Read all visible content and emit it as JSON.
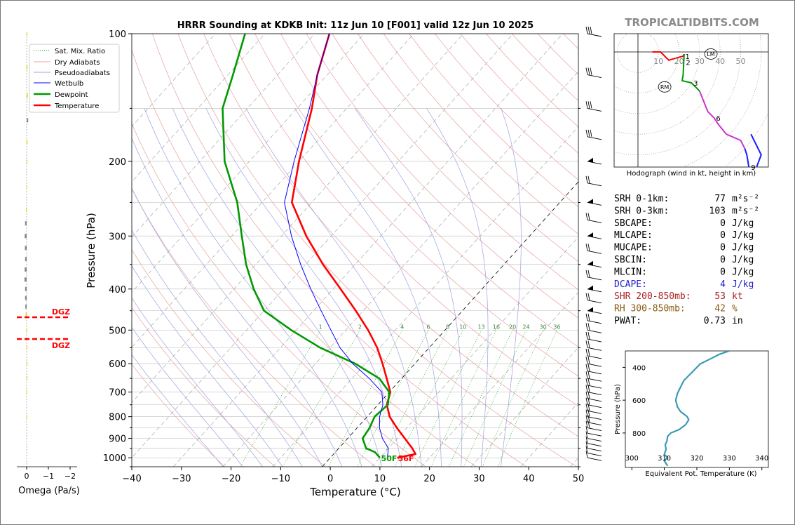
{
  "brand": "TROPICALTIDBITS.COM",
  "skewt": {
    "title": "HRRR Sounding at KDKB Init: 11z Jun 10 [F001] valid 12z Jun 10 2025",
    "xlabel": "Temperature (°C)",
    "ylabel": "Pressure (hPa)",
    "x_ticks": [
      "−40",
      "−30",
      "−20",
      "−10",
      "0",
      "10",
      "20",
      "30",
      "40",
      "50"
    ],
    "y_ticks": [
      "100",
      "200",
      "300",
      "400",
      "500",
      "600",
      "700",
      "800",
      "900",
      "1000"
    ],
    "legend": [
      "Sat. Mix. Ratio",
      "Dry Adiabats",
      "Pseudoadiabats",
      "Wetbulb",
      "Dewpoint",
      "Temperature"
    ],
    "mixing_ratio_labels": [
      "1",
      "2",
      "4",
      "6",
      "8",
      "10",
      "13",
      "16",
      "20",
      "24",
      "30",
      "36"
    ],
    "sfc_dewpoint_label": "50F",
    "sfc_temperature_label": "56F"
  },
  "omega": {
    "xlabel": "Omega (Pa/s)",
    "x_ticks": [
      "0",
      "−1",
      "−2"
    ],
    "dgz_label": "DGZ"
  },
  "hodograph": {
    "caption": "Hodograph (wind in kt, height in km)",
    "ring_labels": [
      "10",
      "20",
      "30",
      "40",
      "50"
    ],
    "height_labels": [
      "1",
      "2",
      "3",
      "6",
      "9"
    ],
    "markers": [
      "LM",
      "RM"
    ]
  },
  "params": [
    {
      "label": "SRH 0-1km:",
      "value": "77",
      "unit": "m²s⁻²",
      "color": "#000000"
    },
    {
      "label": "SRH 0-3km:",
      "value": "103",
      "unit": "m²s⁻²",
      "color": "#000000"
    },
    {
      "label": "SBCAPE:",
      "value": "0",
      "unit": "J/kg",
      "color": "#000000"
    },
    {
      "label": "MLCAPE:",
      "value": "0",
      "unit": "J/kg",
      "color": "#000000"
    },
    {
      "label": "MUCAPE:",
      "value": "0",
      "unit": "J/kg",
      "color": "#000000"
    },
    {
      "label": "SBCIN:",
      "value": "0",
      "unit": "J/kg",
      "color": "#000000"
    },
    {
      "label": "MLCIN:",
      "value": "0",
      "unit": "J/kg",
      "color": "#000000"
    },
    {
      "label": "DCAPE:",
      "value": "4",
      "unit": "J/kg",
      "color": "#2222cc"
    },
    {
      "label": "SHR 200-850mb:",
      "value": "53",
      "unit": "kt",
      "color": "#aa2222"
    },
    {
      "label": "RH 300-850mb:",
      "value": "42",
      "unit": "%",
      "color": "#8a5a10"
    },
    {
      "label": "PWAT:",
      "value": "0.73",
      "unit": "in",
      "color": "#000000"
    }
  ],
  "theta_e_panel": {
    "xlabel": "Equivalent Pot. Temperature (K)",
    "ylabel": "Pressure (hPa)",
    "x_ticks": [
      "300",
      "310",
      "320",
      "330",
      "340"
    ],
    "y_ticks": [
      "400",
      "600",
      "800"
    ]
  },
  "chart_data": [
    {
      "type": "line",
      "title": "HRRR Sounding at KDKB Init: 11z Jun 10 [F001] valid 12z Jun 10 2025",
      "xlabel": "Temperature (°C)",
      "ylabel": "Pressure (hPa)",
      "xlim": [
        -40,
        50
      ],
      "ylim": [
        1050,
        100
      ],
      "y_scale": "log",
      "skew": "skew-T",
      "legend_position": "top-left",
      "series": [
        {
          "name": "Temperature",
          "color": "#ff0000",
          "points": [
            [
              1000,
              13.5
            ],
            [
              980,
              16.5
            ],
            [
              950,
              14.8
            ],
            [
              900,
              11.5
            ],
            [
              850,
              8.0
            ],
            [
              800,
              4.5
            ],
            [
              750,
              1.8
            ],
            [
              700,
              0.2
            ],
            [
              650,
              -3.0
            ],
            [
              600,
              -6.5
            ],
            [
              550,
              -10.5
            ],
            [
              500,
              -15.5
            ],
            [
              450,
              -21.5
            ],
            [
              400,
              -28.5
            ],
            [
              350,
              -36.5
            ],
            [
              300,
              -45
            ],
            [
              250,
              -54
            ],
            [
              200,
              -60
            ],
            [
              150,
              -67
            ],
            [
              125,
              -72
            ],
            [
              100,
              -77
            ]
          ]
        },
        {
          "name": "Dewpoint",
          "color": "#009900",
          "points": [
            [
              1000,
              10.0
            ],
            [
              970,
              8.0
            ],
            [
              950,
              5.5
            ],
            [
              900,
              3.0
            ],
            [
              850,
              2.5
            ],
            [
              800,
              1.5
            ],
            [
              750,
              2.0
            ],
            [
              700,
              0.0
            ],
            [
              650,
              -4.5
            ],
            [
              600,
              -12
            ],
            [
              550,
              -22
            ],
            [
              500,
              -31
            ],
            [
              450,
              -40
            ],
            [
              400,
              -46
            ],
            [
              350,
              -52
            ],
            [
              300,
              -58
            ],
            [
              250,
              -65
            ],
            [
              200,
              -75
            ],
            [
              150,
              -85
            ],
            [
              125,
              -89
            ],
            [
              100,
              -94
            ]
          ]
        },
        {
          "name": "Wetbulb",
          "color": "#0000ff",
          "points": [
            [
              1000,
              11.5
            ],
            [
              950,
              10.0
            ],
            [
              900,
              7.0
            ],
            [
              850,
              4.5
            ],
            [
              800,
              2.5
            ],
            [
              750,
              1.0
            ],
            [
              700,
              -1.5
            ],
            [
              650,
              -6.5
            ],
            [
              600,
              -12.5
            ],
            [
              550,
              -18.0
            ],
            [
              500,
              -23.0
            ],
            [
              450,
              -28.5
            ],
            [
              400,
              -34.5
            ],
            [
              350,
              -41
            ],
            [
              300,
              -48
            ],
            [
              250,
              -55.5
            ],
            [
              200,
              -61
            ],
            [
              150,
              -67.5
            ],
            [
              125,
              -72
            ],
            [
              100,
              -77
            ]
          ]
        }
      ]
    },
    {
      "type": "bar",
      "title": "",
      "xlabel": "Omega (Pa/s)",
      "xlim": [
        0,
        -2
      ],
      "y_scale": "log",
      "series": [
        {
          "name": "",
          "values": [
            [
              100,
              -0.02
            ],
            [
              120,
              -0.04
            ],
            [
              140,
              -0.05
            ],
            [
              160,
              -0.07
            ],
            [
              180,
              -0.04
            ],
            [
              200,
              -0.02
            ],
            [
              230,
              0.01
            ],
            [
              260,
              0.03
            ],
            [
              280,
              0.07
            ],
            [
              300,
              0.09
            ],
            [
              320,
              0.08
            ],
            [
              340,
              0.07
            ],
            [
              360,
              0.09
            ],
            [
              380,
              0.1
            ],
            [
              400,
              0.07
            ],
            [
              420,
              0.07
            ],
            [
              440,
              0.06
            ],
            [
              460,
              0.05
            ],
            [
              500,
              0.02
            ],
            [
              550,
              -0.03
            ],
            [
              600,
              -0.03
            ],
            [
              650,
              -0.02
            ],
            [
              700,
              0.02
            ],
            [
              800,
              0.01
            ]
          ]
        }
      ],
      "dgz_pressure": [
        470,
        525
      ]
    },
    {
      "type": "line",
      "title": "Hodograph (wind in kt, height in km)",
      "xlim": [
        -12,
        62
      ],
      "ylim": [
        -55,
        10
      ],
      "series": [
        {
          "name": "",
          "points_u_v": [
            [
              7,
              0
            ],
            [
              11,
              0
            ],
            [
              15,
              -4
            ],
            [
              22,
              -2
            ],
            [
              22.5,
              -1
            ],
            [
              22.3,
              -5
            ],
            [
              22,
              -11
            ],
            [
              21.5,
              -14
            ],
            [
              26,
              -15
            ],
            [
              30,
              -19
            ],
            [
              34,
              -29
            ],
            [
              37,
              -32
            ],
            [
              39,
              -35
            ],
            [
              43,
              -40
            ],
            [
              50,
              -43
            ],
            [
              52,
              -47
            ],
            [
              53,
              -50
            ],
            [
              54,
              -56
            ],
            [
              57,
              -58
            ],
            [
              60,
              -50
            ],
            [
              55,
              -40
            ]
          ]
        }
      ],
      "storm_motion": {
        "LM": [
          35.5,
          -1
        ],
        "RM": [
          13,
          -17
        ]
      }
    },
    {
      "type": "line",
      "title": "",
      "xlabel": "Equivalent Pot. Temperature (K)",
      "ylabel": "Pressure (hPa)",
      "xlim": [
        298,
        342
      ],
      "ylim": [
        1010,
        300
      ],
      "series": [
        {
          "name": "",
          "points": [
            [
              1000,
              311
            ],
            [
              970,
              310
            ],
            [
              950,
              311
            ],
            [
              930,
              310
            ],
            [
              900,
              310.5
            ],
            [
              870,
              310.3
            ],
            [
              850,
              310.8
            ],
            [
              820,
              311
            ],
            [
              800,
              312
            ],
            [
              780,
              314.5
            ],
            [
              750,
              316.5
            ],
            [
              720,
              317.5
            ],
            [
              700,
              317
            ],
            [
              670,
              315
            ],
            [
              640,
              314
            ],
            [
              600,
              313.5
            ],
            [
              560,
              314
            ],
            [
              520,
              315
            ],
            [
              480,
              316
            ],
            [
              450,
              317.5
            ],
            [
              420,
              319
            ],
            [
              380,
              321
            ],
            [
              350,
              324
            ],
            [
              320,
              327
            ],
            [
              300,
              330
            ]
          ]
        }
      ]
    }
  ]
}
